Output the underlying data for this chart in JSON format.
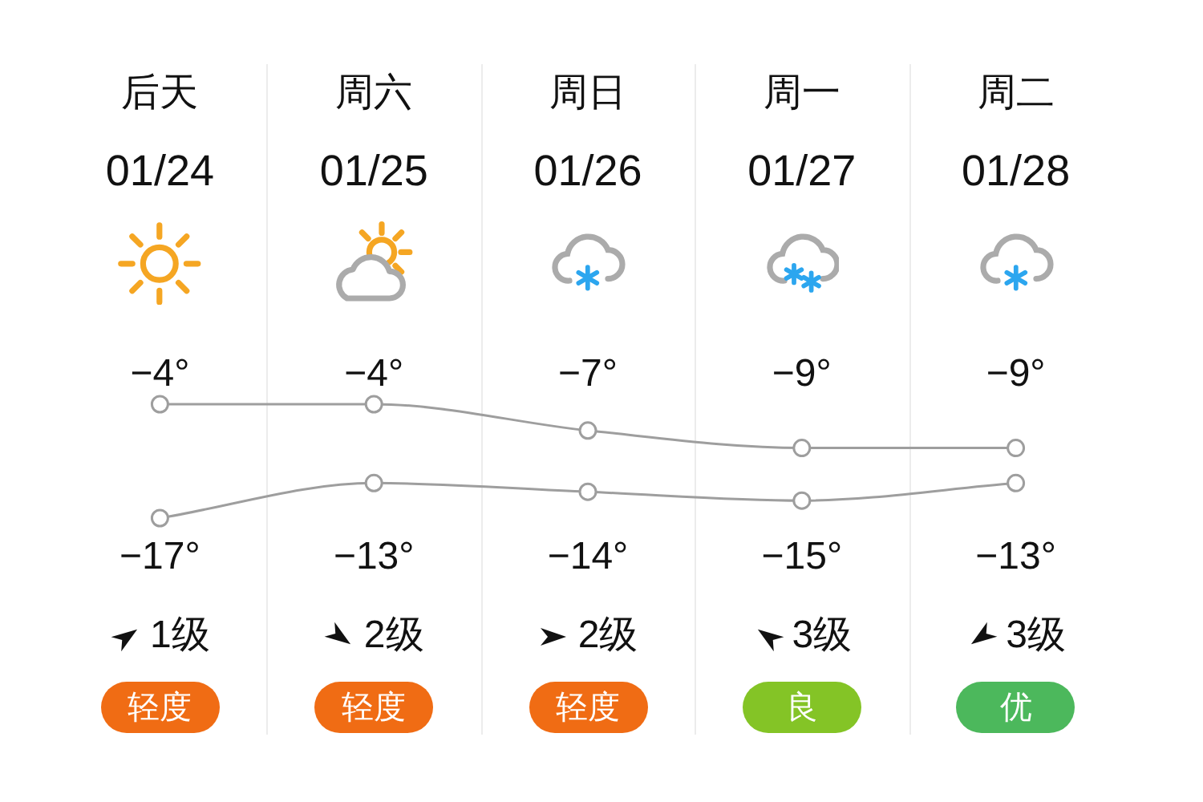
{
  "chart_data": {
    "type": "line",
    "categories": [
      "后天",
      "周六",
      "周日",
      "周一",
      "周二"
    ],
    "series": [
      {
        "color": "#9e9e9e",
        "values": [
          -4,
          -4,
          -7,
          -9,
          -9
        ],
        "value_labels": [
          "−4°",
          "−4°",
          "−7°",
          "−9°",
          "−9°"
        ]
      },
      {
        "color": "#9e9e9e",
        "values": [
          -17,
          -13,
          -14,
          -15,
          -13
        ],
        "value_labels": [
          "−17°",
          "−13°",
          "−14°",
          "−15°",
          "−13°"
        ]
      }
    ],
    "annotations": [
      "01/24",
      "01/25",
      "01/26",
      "01/27",
      "01/28",
      "1级",
      "2级",
      "2级",
      "3级",
      "3级",
      "轻度",
      "轻度",
      "轻度",
      "良",
      "优"
    ],
    "marker": "circle",
    "line_style": "solid",
    "grid": "x",
    "tick_labels": "x"
  }
}
